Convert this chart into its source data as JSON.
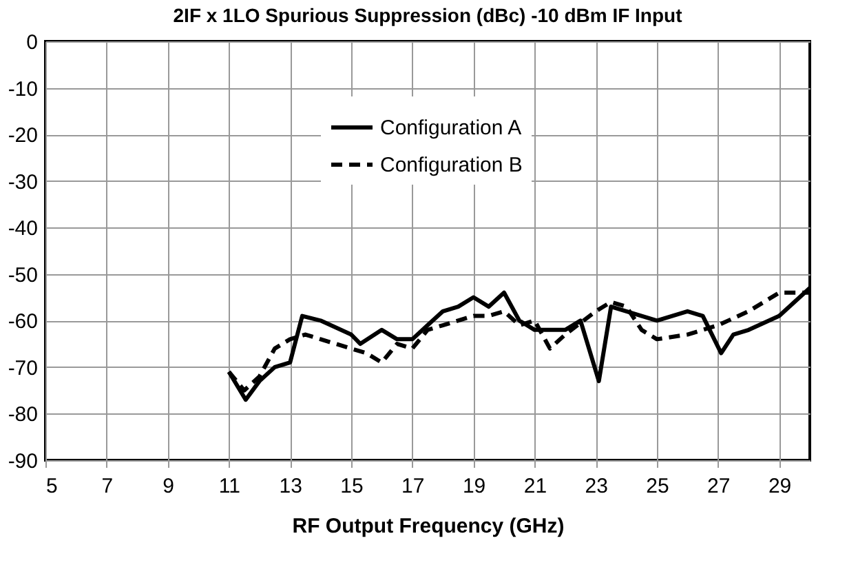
{
  "chart_data": {
    "type": "line",
    "title": "2IF x 1LO Spurious Suppression (dBc) -10 dBm IF Input",
    "xlabel": "RF Output Frequency (GHz)",
    "xlim": [
      5,
      30
    ],
    "xticks": [
      5,
      7,
      9,
      11,
      13,
      15,
      17,
      19,
      21,
      23,
      25,
      27,
      29
    ],
    "ylim": [
      -90,
      0
    ],
    "yticks": [
      -90,
      -80,
      -70,
      -60,
      -50,
      -40,
      -30,
      -20,
      -10,
      0
    ],
    "grid": true,
    "legend": "top",
    "marker": "none",
    "series": [
      {
        "name": "Configuration A",
        "color": "#000000",
        "line_style": "solid",
        "x": [
          11,
          11.55,
          12,
          12.5,
          13,
          13.4,
          14,
          15,
          15.3,
          16,
          16.5,
          17,
          17.5,
          18,
          18.5,
          19,
          19.5,
          20,
          20.5,
          21,
          22,
          22.5,
          23.1,
          23.5,
          24,
          25,
          26,
          26.5,
          27.1,
          27.5,
          28,
          29,
          30
        ],
        "values": [
          -71,
          -77,
          -73,
          -70,
          -69,
          -59,
          -60,
          -63,
          -65,
          -62,
          -64,
          -64,
          -61,
          -58,
          -57,
          -55,
          -57,
          -54,
          -60,
          -62,
          -62,
          -60,
          -73,
          -57,
          -58,
          -60,
          -58,
          -59,
          -67,
          -63,
          -62,
          -59,
          -53
        ]
      },
      {
        "name": "Configuration B",
        "color": "#000000",
        "line_style": "dashed",
        "x": [
          11,
          11.5,
          12,
          12.5,
          13,
          13.5,
          14,
          15,
          15.5,
          16,
          16.5,
          17,
          17.5,
          18,
          19,
          19.5,
          20,
          20.5,
          21,
          21.5,
          22,
          23,
          23.5,
          24,
          24.5,
          25,
          26,
          26.5,
          27,
          28,
          29,
          30
        ],
        "values": [
          -71,
          -75,
          -72,
          -66,
          -64,
          -63,
          -64,
          -66,
          -67,
          -69,
          -65,
          -66,
          -62,
          -61,
          -59,
          -59,
          -58,
          -61,
          -60,
          -66,
          -63,
          -58,
          -56,
          -57,
          -62,
          -64,
          -63,
          -62,
          -61,
          -58,
          -54,
          -54
        ]
      }
    ]
  }
}
